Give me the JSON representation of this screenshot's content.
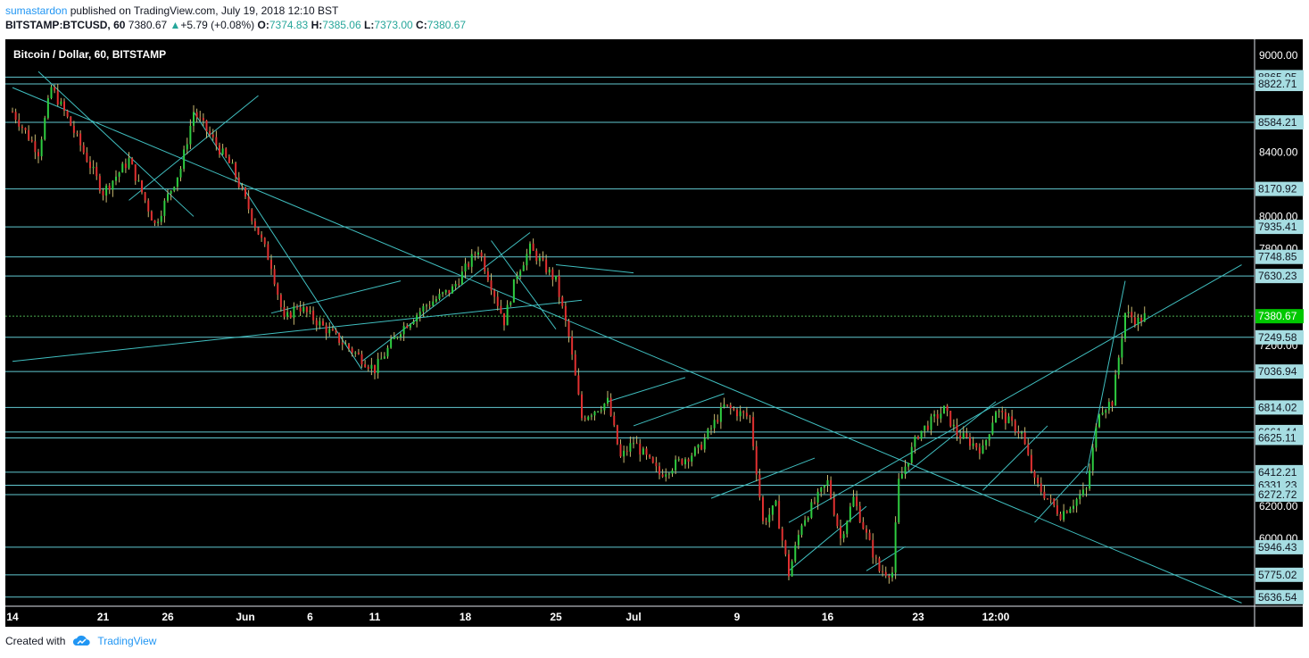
{
  "header": {
    "author": "sumastardon",
    "published": "published on TradingView.com, July 19, 2018 12:10 BST",
    "symbol": "BITSTAMP:BTCUSD, 60",
    "last": "7380.67",
    "change": "+5.79 (+0.08%)",
    "o_label": "O:",
    "o_val": "7374.83",
    "h_label": "H:",
    "h_val": "7385.06",
    "l_label": "L:",
    "l_val": "7373.00",
    "c_label": "C:",
    "c_val": "7380.67"
  },
  "chart_data": {
    "type": "candlestick",
    "title": "Bitcoin / Dollar, 60, BITSTAMP",
    "ylim": [
      5580,
      9100
    ],
    "y_ticks": [
      "9000.00",
      "8400.00",
      "8000.00",
      "7800.00",
      "7200.00",
      "6200.00",
      "6000.00"
    ],
    "x_ticks": [
      "14",
      "21",
      "26",
      "Jun",
      "6",
      "11",
      "18",
      "25",
      "Jul",
      "9",
      "16",
      "23",
      "12:00"
    ],
    "horizontal_levels": [
      {
        "value": 8865.05,
        "label": "8865.05"
      },
      {
        "value": 8822.71,
        "label": "8822.71"
      },
      {
        "value": 8584.21,
        "label": "8584.21"
      },
      {
        "value": 8170.92,
        "label": "8170.92"
      },
      {
        "value": 7935.41,
        "label": "7935.41"
      },
      {
        "value": 7748.85,
        "label": "7748.85"
      },
      {
        "value": 7630.23,
        "label": "7630.23"
      },
      {
        "value": 7249.58,
        "label": "7249.58"
      },
      {
        "value": 7036.94,
        "label": "7036.94"
      },
      {
        "value": 6814.02,
        "label": "6814.02"
      },
      {
        "value": 6661.44,
        "label": "6661.44"
      },
      {
        "value": 6625.11,
        "label": "6625.11"
      },
      {
        "value": 6412.21,
        "label": "6412.21"
      },
      {
        "value": 6331.23,
        "label": "6331.23"
      },
      {
        "value": 6272.72,
        "label": "6272.72"
      },
      {
        "value": 5946.43,
        "label": "5946.43"
      },
      {
        "value": 5775.02,
        "label": "5775.02"
      },
      {
        "value": 5636.54,
        "label": "5636.54"
      }
    ],
    "price_label": {
      "value": 7380.67,
      "label": "7380.67"
    },
    "path": [
      [
        0,
        8650
      ],
      [
        2,
        8400
      ],
      [
        3,
        8800
      ],
      [
        4,
        8650
      ],
      [
        7,
        8150
      ],
      [
        9,
        8350
      ],
      [
        11,
        7950
      ],
      [
        13,
        8300
      ],
      [
        14,
        8650
      ],
      [
        17,
        8300
      ],
      [
        20,
        7700
      ],
      [
        21,
        7350
      ],
      [
        22,
        7450
      ],
      [
        25,
        7250
      ],
      [
        28,
        7050
      ],
      [
        30,
        7300
      ],
      [
        32,
        7450
      ],
      [
        34,
        7550
      ],
      [
        36,
        7800
      ],
      [
        38,
        7350
      ],
      [
        39,
        7650
      ],
      [
        40,
        7800
      ],
      [
        42,
        7600
      ],
      [
        43,
        7250
      ],
      [
        44,
        6750
      ],
      [
        46,
        6850
      ],
      [
        47,
        6500
      ],
      [
        48,
        6600
      ],
      [
        50,
        6400
      ],
      [
        53,
        6550
      ],
      [
        55,
        6820
      ],
      [
        57,
        6750
      ],
      [
        58,
        6100
      ],
      [
        59,
        6200
      ],
      [
        60,
        5780
      ],
      [
        61,
        6100
      ],
      [
        63,
        6350
      ],
      [
        64,
        6000
      ],
      [
        65,
        6250
      ],
      [
        66,
        6020
      ],
      [
        67,
        5800
      ],
      [
        68,
        5790
      ],
      [
        68.5,
        6350
      ],
      [
        70,
        6650
      ],
      [
        72,
        6800
      ],
      [
        73,
        6650
      ],
      [
        75,
        6550
      ],
      [
        76,
        6800
      ],
      [
        78,
        6650
      ],
      [
        79,
        6350
      ],
      [
        80,
        6250
      ],
      [
        81,
        6150
      ],
      [
        83,
        6300
      ],
      [
        84,
        6800
      ],
      [
        85,
        6850
      ],
      [
        86,
        7400
      ],
      [
        87,
        7350
      ],
      [
        87.5,
        7380
      ]
    ]
  },
  "footer": {
    "created": "Created with",
    "brand": "TradingView"
  }
}
